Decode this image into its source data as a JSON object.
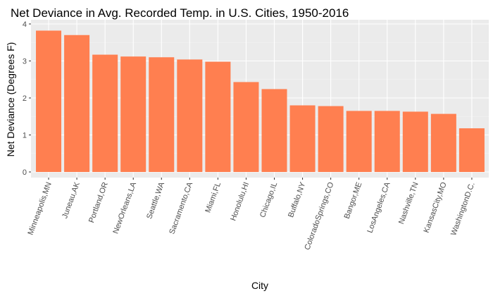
{
  "chart_data": {
    "type": "bar",
    "title": "Net Deviance in Avg. Recorded Temp. in U.S. Cities, 1950-2016",
    "xlabel": "City",
    "ylabel": "Net Deviance (Degrees F)",
    "categories": [
      "Minneapolis,MN",
      "Juneau,AK",
      "Portland,OR",
      "NewOrleans,LA",
      "Seattle,WA",
      "Sacramento,CA",
      "Miami,FL",
      "Honolulu,HI",
      "Chicago,IL",
      "Buffalo,NY",
      "ColoradoSprings,CO",
      "Bangor,ME",
      "LosAngeles,CA",
      "Nashville,TN",
      "KansasCity,MO",
      "WashingtonD.C."
    ],
    "values": [
      3.82,
      3.7,
      3.17,
      3.12,
      3.1,
      3.04,
      2.98,
      2.43,
      2.24,
      1.8,
      1.78,
      1.65,
      1.65,
      1.63,
      1.57,
      1.18
    ],
    "ylim": [
      0,
      4
    ],
    "yticks": [
      "0",
      "1",
      "2",
      "3",
      "4"
    ],
    "grid": true,
    "colors": {
      "bar": "#FF7F50",
      "panel": "#EBEBEB",
      "grid_major": "#FFFFFF",
      "grid_minor": "#F5F5F5"
    }
  }
}
